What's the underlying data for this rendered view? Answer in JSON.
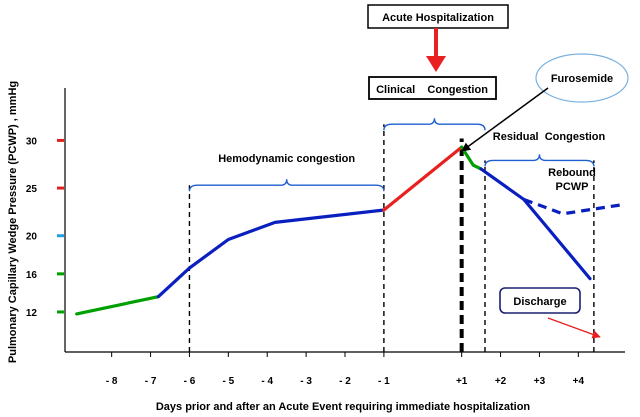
{
  "chart_data": {
    "type": "line",
    "xlabel": "Days prior and after an Acute Event requiring immediate  hospitalization",
    "ylabel": "Pulmonary Capillary  Wedge Pressure (PCWP) , mmHg",
    "x_ticks": [
      "- 8",
      "- 7",
      "- 6",
      "- 5",
      "- 4",
      "- 3",
      "- 2",
      "- 1",
      "+1",
      "+2",
      "+3",
      "+4"
    ],
    "x_tick_values": [
      -8,
      -7,
      -6,
      -5,
      -4,
      -3,
      -2,
      -1,
      1,
      2,
      3,
      4
    ],
    "y_ticks": [
      {
        "value": 12,
        "label": "12",
        "color": "#00a000"
      },
      {
        "value": 16,
        "label": "16",
        "color": "#00a000"
      },
      {
        "value": 20,
        "label": "20",
        "color": "#1fa0e0"
      },
      {
        "value": 25,
        "label": "25",
        "color": "#e02020"
      },
      {
        "value": 30,
        "label": "30",
        "color": "#e02020"
      }
    ],
    "ylim": [
      7.8,
      35.5
    ],
    "xlim": [
      -9.2,
      5.2
    ],
    "series": [
      {
        "color": "#00a000",
        "dash": false,
        "points": [
          [
            -8.9,
            11.8
          ],
          [
            -6.8,
            13.6
          ]
        ]
      },
      {
        "color": "#0a1fbf",
        "dash": false,
        "points": [
          [
            -6.8,
            13.6
          ],
          [
            -6.0,
            16.6
          ],
          [
            -5.0,
            19.6
          ],
          [
            -3.8,
            21.4
          ],
          [
            -1.0,
            22.7
          ]
        ]
      },
      {
        "color": "#e82020",
        "dash": false,
        "points": [
          [
            -1.0,
            22.7
          ],
          [
            1.0,
            29.3
          ]
        ]
      },
      {
        "color": "#00a000",
        "dash": false,
        "points": [
          [
            1.0,
            29.3
          ],
          [
            1.3,
            27.4
          ],
          [
            1.5,
            27.0
          ]
        ]
      },
      {
        "color": "#0a1fbf",
        "dash": false,
        "points": [
          [
            1.5,
            27.0
          ],
          [
            2.6,
            23.8
          ],
          [
            4.3,
            15.5
          ]
        ]
      },
      {
        "color": "#0a1fbf",
        "dash": true,
        "points": [
          [
            2.6,
            23.8
          ],
          [
            3.6,
            22.3
          ],
          [
            5.2,
            23.3
          ]
        ]
      }
    ],
    "vlines": [
      {
        "x": -6.0,
        "y0": 7.8,
        "y1": 25.3,
        "bold": false
      },
      {
        "x": -1.0,
        "y0": 7.8,
        "y1": 31.7,
        "bold": false
      },
      {
        "x": 1.0,
        "y0": 7.8,
        "y1": 30.2,
        "bold": true
      },
      {
        "x": 1.6,
        "y0": 7.8,
        "y1": 27.9,
        "bold": false
      },
      {
        "x": 4.4,
        "y0": 7.8,
        "y1": 27.9,
        "bold": false
      }
    ],
    "braces": [
      {
        "x0": -6.0,
        "x1": -1.0,
        "y": 25.3,
        "label": "Hemodynamic  congestion"
      },
      {
        "x0": -1.0,
        "x1": 1.6,
        "y": 31.7,
        "label": ""
      },
      {
        "x0": 1.6,
        "x1": 4.4,
        "y": 27.9,
        "label": ""
      }
    ],
    "annotations": {
      "acute": "Acute Hospitalization",
      "clinical": "Clinical    Congestion",
      "furosemide": "Furosemide",
      "residual": "Residual  Congestion",
      "rebound_line1": "Rebound",
      "rebound_line2": "PCWP",
      "discharge": "Discharge"
    }
  }
}
